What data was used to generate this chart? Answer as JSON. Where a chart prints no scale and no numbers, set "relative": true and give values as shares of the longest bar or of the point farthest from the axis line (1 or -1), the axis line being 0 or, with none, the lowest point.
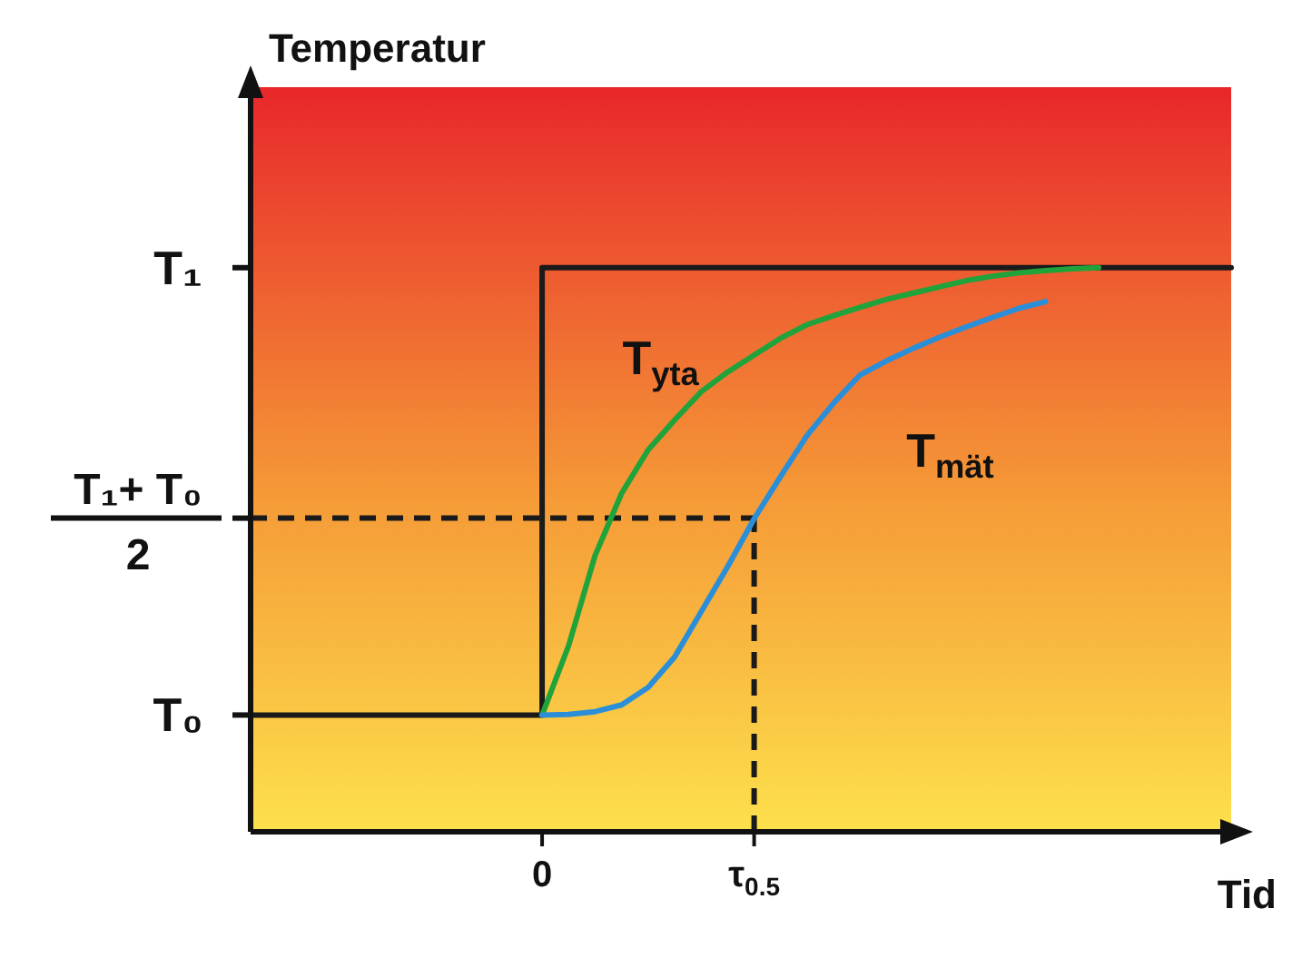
{
  "chart_data": {
    "type": "line",
    "relative": true,
    "xlabel": "Tid",
    "ylabel": "Temperatur",
    "categories": [
      null,
      null,
      null,
      null,
      null,
      null,
      null,
      null,
      null,
      null,
      null,
      "0",
      null,
      null,
      null,
      null,
      null,
      null,
      null,
      "τ$_{0.5}$",
      null,
      null,
      null,
      null,
      null,
      null,
      null,
      null,
      null,
      null,
      null,
      null,
      null,
      null,
      null,
      null,
      null,
      null
    ],
    "annotations": [
      "T₀",
      "T₁+ T₀\n2",
      "T₁"
    ],
    "ref_lines": [
      {
        "axis": "y",
        "value": 0.556,
        "color": "#1a1a1a",
        "line_style": "dashed"
      },
      {
        "axis": "x",
        "value": "τ$_{0.5}$",
        "color": "#1a1a1a",
        "line_style": "dashed"
      }
    ],
    "marker": "none",
    "series": [
      {
        "type": "step",
        "color": "#1a1a1a",
        "values": [
          0.207,
          0.207,
          0.207,
          0.207,
          0.207,
          0.207,
          0.207,
          0.207,
          0.207,
          0.207,
          0.207,
          1,
          1,
          1,
          1,
          1,
          1,
          1,
          1,
          1,
          1,
          1,
          1,
          1,
          1,
          1,
          1,
          1,
          1,
          1,
          1,
          1,
          1,
          1,
          1,
          1,
          1,
          1
        ]
      },
      {
        "name": "T$_{yta}$",
        "color": "#1fa33a",
        "values": [
          null,
          null,
          null,
          null,
          null,
          null,
          null,
          null,
          null,
          null,
          null,
          0.207,
          0.33,
          0.49,
          0.6,
          0.677,
          0.73,
          0.78,
          0.815,
          0.845,
          0.875,
          0.899,
          0.915,
          0.93,
          0.944,
          0.955,
          0.966,
          0.977,
          0.985,
          0.991,
          0.995,
          0.998,
          1,
          null,
          null,
          null,
          null,
          null
        ]
      },
      {
        "name": "T$_{mät}$",
        "color": "#2a8fd8",
        "values": [
          null,
          null,
          null,
          null,
          null,
          null,
          null,
          null,
          null,
          null,
          null,
          0.207,
          0.208,
          0.213,
          0.225,
          0.256,
          0.31,
          0.39,
          0.47,
          0.555,
          0.63,
          0.703,
          0.76,
          0.81,
          0.835,
          0.857,
          0.877,
          0.895,
          0.912,
          0.928,
          0.94,
          null,
          null,
          null,
          null,
          null,
          null,
          null
        ]
      }
    ]
  }
}
